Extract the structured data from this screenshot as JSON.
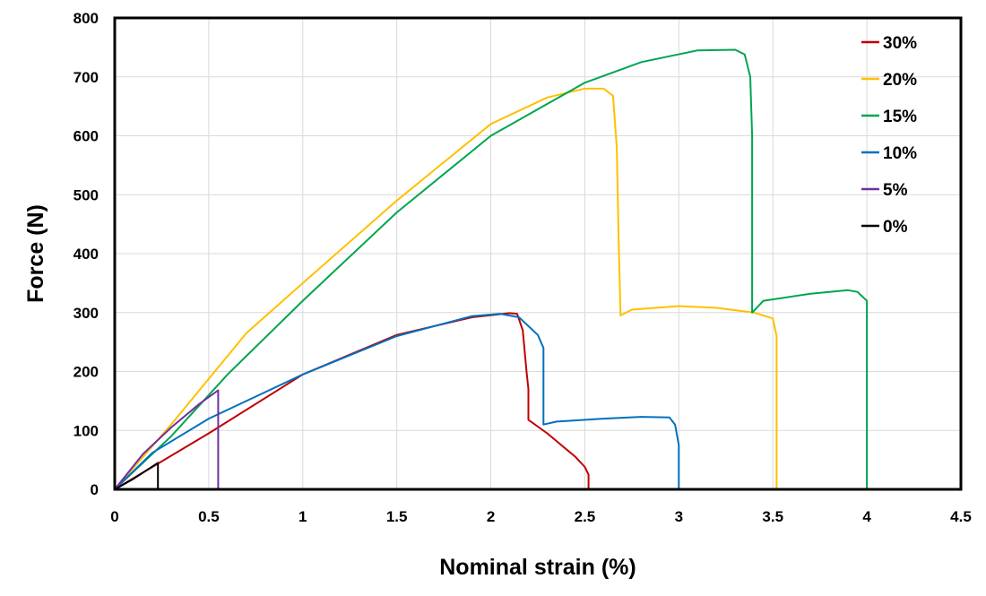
{
  "chart_data": {
    "type": "line",
    "xlabel": "Nominal strain (%)",
    "ylabel": "Force  (N)",
    "xlim": [
      0,
      4.5
    ],
    "ylim": [
      0,
      800
    ],
    "x_ticks": [
      "0",
      "0.5",
      "1",
      "1.5",
      "2",
      "2.5",
      "3",
      "3.5",
      "4",
      "4.5"
    ],
    "y_ticks": [
      "0",
      "100",
      "200",
      "300",
      "400",
      "500",
      "600",
      "700",
      "800"
    ],
    "grid": true,
    "legend_position": "top-right",
    "series": [
      {
        "name": "30%",
        "color": "#c00000",
        "points": [
          [
            0,
            0
          ],
          [
            0.2,
            38
          ],
          [
            0.5,
            95
          ],
          [
            1.0,
            195
          ],
          [
            1.5,
            262
          ],
          [
            1.9,
            292
          ],
          [
            2.1,
            299
          ],
          [
            2.14,
            298
          ],
          [
            2.17,
            270
          ],
          [
            2.19,
            200
          ],
          [
            2.2,
            170
          ],
          [
            2.2,
            118
          ],
          [
            2.3,
            95
          ],
          [
            2.45,
            55
          ],
          [
            2.5,
            38
          ],
          [
            2.52,
            25
          ],
          [
            2.52,
            0
          ]
        ]
      },
      {
        "name": "20%",
        "color": "#ffc000",
        "points": [
          [
            0,
            0
          ],
          [
            0.3,
            110
          ],
          [
            0.7,
            265
          ],
          [
            1.0,
            350
          ],
          [
            1.5,
            490
          ],
          [
            2.0,
            620
          ],
          [
            2.3,
            665
          ],
          [
            2.5,
            680
          ],
          [
            2.6,
            680
          ],
          [
            2.65,
            668
          ],
          [
            2.67,
            580
          ],
          [
            2.68,
            420
          ],
          [
            2.69,
            295
          ],
          [
            2.75,
            305
          ],
          [
            3.0,
            311
          ],
          [
            3.2,
            308
          ],
          [
            3.4,
            300
          ],
          [
            3.5,
            290
          ],
          [
            3.52,
            260
          ],
          [
            3.52,
            0
          ]
        ]
      },
      {
        "name": "15%",
        "color": "#00a550",
        "points": [
          [
            0,
            0
          ],
          [
            0.3,
            90
          ],
          [
            0.6,
            195
          ],
          [
            1.0,
            320
          ],
          [
            1.5,
            470
          ],
          [
            2.0,
            600
          ],
          [
            2.5,
            690
          ],
          [
            2.8,
            725
          ],
          [
            3.1,
            745
          ],
          [
            3.3,
            746
          ],
          [
            3.35,
            738
          ],
          [
            3.38,
            700
          ],
          [
            3.39,
            600
          ],
          [
            3.39,
            300
          ],
          [
            3.45,
            320
          ],
          [
            3.7,
            332
          ],
          [
            3.9,
            338
          ],
          [
            3.95,
            335
          ],
          [
            4.0,
            320
          ],
          [
            4.0,
            0
          ]
        ]
      },
      {
        "name": "10%",
        "color": "#0070c0",
        "points": [
          [
            0,
            0
          ],
          [
            0.2,
            62
          ],
          [
            0.5,
            120
          ],
          [
            1.0,
            195
          ],
          [
            1.5,
            260
          ],
          [
            1.9,
            294
          ],
          [
            2.05,
            298
          ],
          [
            2.15,
            292
          ],
          [
            2.25,
            262
          ],
          [
            2.28,
            240
          ],
          [
            2.28,
            110
          ],
          [
            2.35,
            115
          ],
          [
            2.6,
            120
          ],
          [
            2.8,
            123
          ],
          [
            2.95,
            122
          ],
          [
            2.98,
            110
          ],
          [
            3.0,
            75
          ],
          [
            3.0,
            0
          ]
        ]
      },
      {
        "name": "5%",
        "color": "#7030a0",
        "points": [
          [
            0,
            0
          ],
          [
            0.15,
            60
          ],
          [
            0.3,
            105
          ],
          [
            0.45,
            145
          ],
          [
            0.55,
            168
          ],
          [
            0.55,
            0
          ]
        ]
      },
      {
        "name": "0%",
        "color": "#000000",
        "points": [
          [
            0,
            0
          ],
          [
            0.1,
            18
          ],
          [
            0.23,
            45
          ],
          [
            0.23,
            0
          ]
        ]
      }
    ]
  }
}
